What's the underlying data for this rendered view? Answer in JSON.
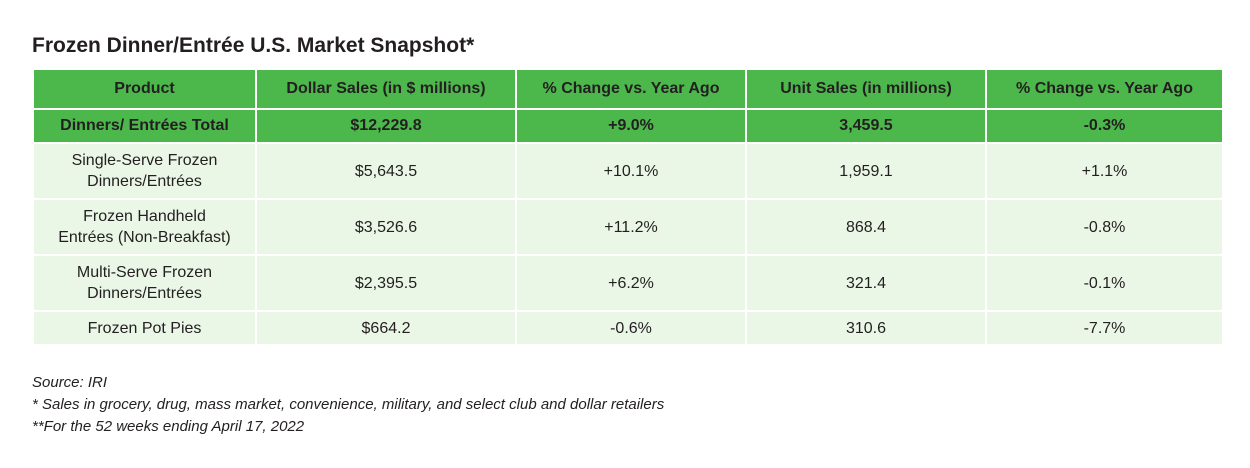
{
  "title": "Frozen Dinner/Entrée U.S. Market Snapshot*",
  "table": {
    "header": [
      "Product",
      "Dollar Sales (in $ millions)",
      "% Change vs. Year Ago",
      "Unit Sales (in millions)",
      "% Change vs. Year Ago"
    ],
    "total": [
      "Dinners/ Entrées Total",
      "$12,229.8",
      "+9.0%",
      "3,459.5",
      "-0.3%"
    ],
    "rows": [
      [
        [
          "Single-Serve Frozen",
          "Dinners/Entrées"
        ],
        "$5,643.5",
        "+10.1%",
        "1,959.1",
        "+1.1%"
      ],
      [
        [
          "Frozen Handheld",
          "Entrées (Non-Breakfast)"
        ],
        "$3,526.6",
        "+11.2%",
        "868.4",
        "-0.8%"
      ],
      [
        [
          "Multi-Serve Frozen",
          "Dinners/Entrées"
        ],
        "$2,395.5",
        "+6.2%",
        "321.4",
        "-0.1%"
      ],
      [
        [
          "Frozen Pot Pies"
        ],
        "$664.2",
        "-0.6%",
        "310.6",
        "-7.7%"
      ]
    ]
  },
  "notes": [
    "Source: IRI",
    "* Sales in grocery, drug, mass market, convenience, military, and select club and dollar retailers",
    "**For the 52 weeks ending April 17, 2022"
  ]
}
